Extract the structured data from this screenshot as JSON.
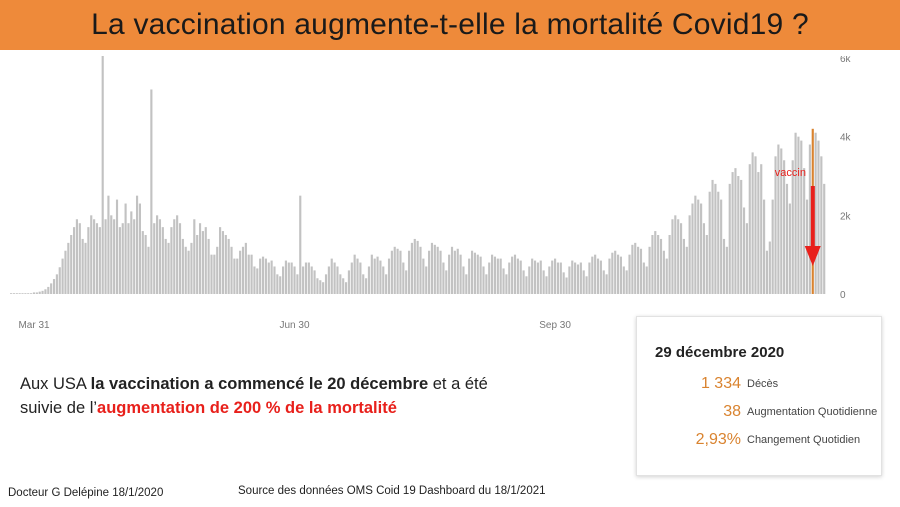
{
  "title": "La vaccination augmente-t-elle la mortalité Covid19 ?",
  "annotation": {
    "label": "vaccin",
    "color": "#e8201b"
  },
  "tooltip": {
    "date": "29 décembre 2020",
    "rows": [
      {
        "value": "1 334",
        "label": "Décès"
      },
      {
        "value": "38",
        "label": "Augmentation Quotidienne"
      },
      {
        "value": "2,93%",
        "label": "Changement Quotidien"
      }
    ]
  },
  "caption": {
    "line1_normal_a": "Aux USA ",
    "line1_bold": "la vaccination a commencé le 20 décembre",
    "line1_normal_b": " et a été",
    "line2_normal": "suivie de l’",
    "line2_red": "augmentation de 200 % de la mortalité"
  },
  "footer": {
    "author": "Docteur G Delépine 18/1/2020",
    "source": "Source des données OMS Coid 19 Dashboard du 18/1/2021"
  },
  "colors": {
    "bar": "#c2c2c2",
    "highlight": "#d9832f",
    "accent": "#e8201b",
    "title_bg": "#ee8a3a"
  },
  "chart_data": {
    "type": "bar",
    "title": "",
    "xlabel": "",
    "ylabel": "",
    "ylim": [
      0,
      6000
    ],
    "y_ticks": [
      {
        "value": 0,
        "label": "0"
      },
      {
        "value": 2000,
        "label": "2k"
      },
      {
        "value": 4000,
        "label": "4k"
      },
      {
        "value": 6000,
        "label": "6k"
      }
    ],
    "x_ticks": [
      {
        "index": 8,
        "label": "Mar 31"
      },
      {
        "index": 99,
        "label": "Jun 30"
      },
      {
        "index": 190,
        "label": "Sep 30"
      }
    ],
    "highlight_index": 280,
    "values": [
      20,
      20,
      20,
      20,
      20,
      20,
      20,
      20,
      40,
      40,
      60,
      80,
      120,
      180,
      270,
      380,
      500,
      680,
      900,
      1100,
      1300,
      1500,
      1700,
      1900,
      1800,
      1400,
      1300,
      1700,
      2000,
      1900,
      1800,
      1700,
      6300,
      1900,
      2500,
      2000,
      1900,
      2400,
      1700,
      1800,
      2300,
      1800,
      2100,
      1900,
      2500,
      2300,
      1600,
      1500,
      1200,
      5200,
      1800,
      2000,
      1900,
      1700,
      1400,
      1300,
      1700,
      1900,
      2000,
      1800,
      1400,
      1200,
      1100,
      1300,
      1900,
      1500,
      1800,
      1600,
      1700,
      1400,
      1000,
      1000,
      1200,
      1700,
      1600,
      1500,
      1400,
      1200,
      900,
      900,
      1100,
      1200,
      1300,
      1000,
      1000,
      700,
      650,
      900,
      950,
      900,
      800,
      850,
      700,
      500,
      450,
      700,
      850,
      800,
      800,
      700,
      500,
      2500,
      700,
      800,
      800,
      700,
      600,
      400,
      350,
      300,
      500,
      700,
      900,
      800,
      700,
      500,
      400,
      300,
      600,
      800,
      1000,
      900,
      800,
      500,
      400,
      700,
      1000,
      900,
      950,
      850,
      700,
      500,
      900,
      1100,
      1200,
      1150,
      1100,
      800,
      600,
      1100,
      1300,
      1400,
      1350,
      1200,
      900,
      700,
      1100,
      1300,
      1250,
      1200,
      1100,
      800,
      600,
      1000,
      1200,
      1100,
      1150,
      1000,
      700,
      500,
      900,
      1100,
      1050,
      1000,
      950,
      700,
      500,
      800,
      1000,
      950,
      900,
      900,
      650,
      500,
      800,
      950,
      1000,
      900,
      850,
      600,
      450,
      700,
      900,
      850,
      800,
      850,
      600,
      450,
      700,
      850,
      900,
      800,
      800,
      550,
      420,
      700,
      850,
      800,
      750,
      800,
      600,
      450,
      800,
      950,
      1000,
      900,
      850,
      600,
      500,
      900,
      1050,
      1100,
      1000,
      950,
      700,
      600,
      1000,
      1250,
      1300,
      1200,
      1150,
      800,
      700,
      1200,
      1500,
      1600,
      1500,
      1400,
      1100,
      900,
      1500,
      1900,
      2000,
      1900,
      1800,
      1400,
      1200,
      2000,
      2300,
      2500,
      2400,
      2300,
      1800,
      1500,
      2600,
      2900,
      2800,
      2600,
      2400,
      1400,
      1200,
      2800,
      3100,
      3200,
      3000,
      2900,
      2200,
      1800,
      3300,
      3600,
      3500,
      3100,
      3300,
      2400,
      1100,
      1334,
      2400,
      3500,
      3800,
      3700,
      3400,
      2800,
      2300,
      3400,
      4100,
      4000,
      3900,
      3200,
      2400,
      3800,
      4200,
      4100,
      3900,
      3500,
      2800
    ]
  }
}
